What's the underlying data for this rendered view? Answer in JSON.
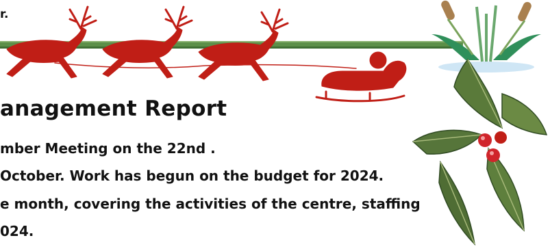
{
  "page": {
    "top_fragment": "r.",
    "title": "anagement Report",
    "lines": [
      "mber Meeting on the 22nd .",
      "October. Work has begun on the budget for 2024.",
      "e month, covering the activities of the centre, staffing",
      "024."
    ]
  },
  "decorations": {
    "reindeer_sleigh_color": "#c01e16",
    "band_color": "#5c8f49",
    "holly_leaf_color": "#5a7a3a",
    "berry_color": "#d0252b",
    "logo_icon": "bulrush-logo-icon",
    "sleigh_icon": "reindeer-sleigh-icon",
    "holly_icon": "holly-icon"
  }
}
